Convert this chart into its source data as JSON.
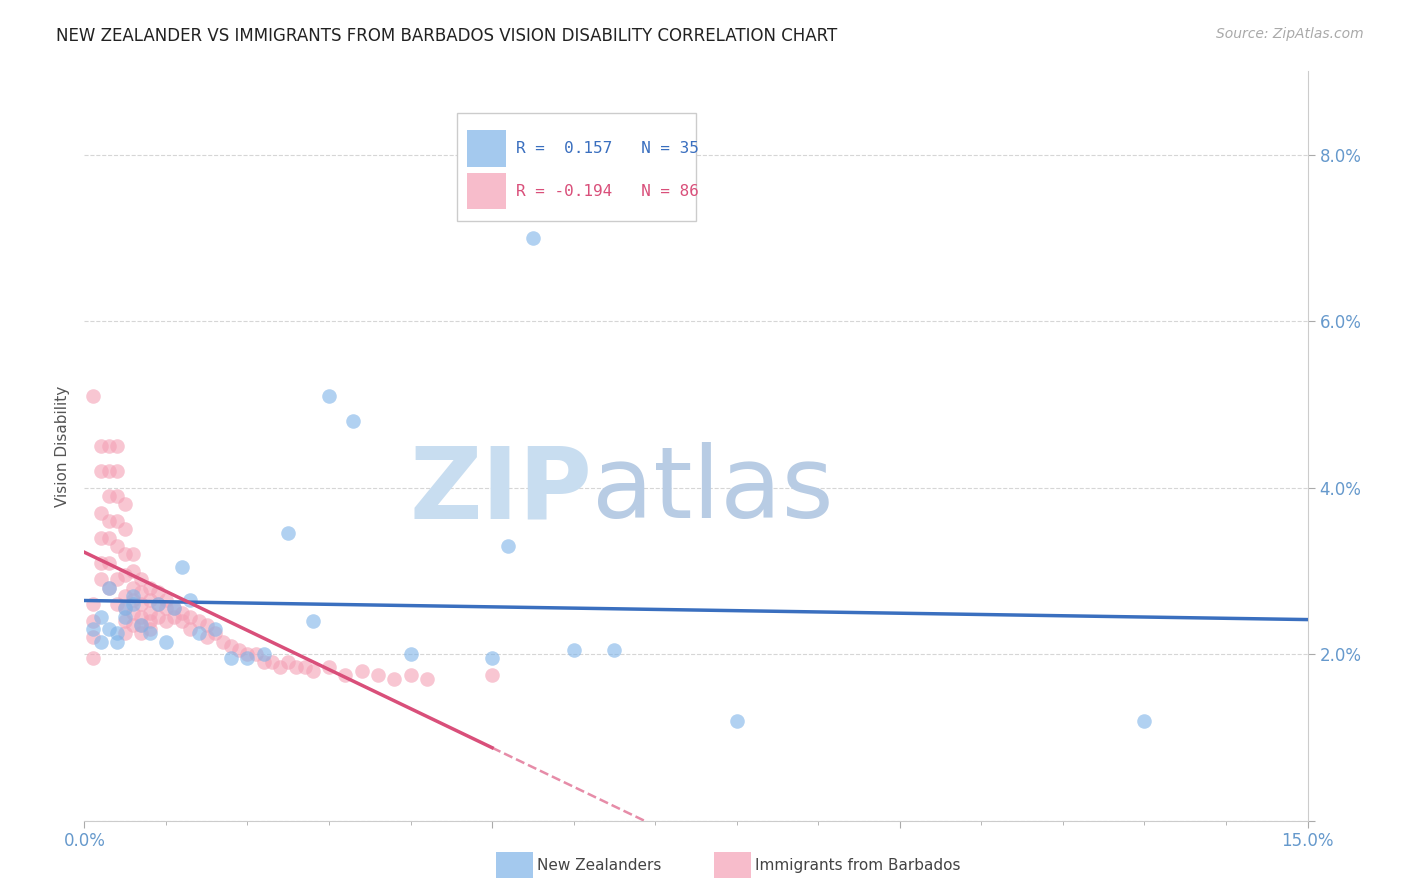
{
  "title": "NEW ZEALANDER VS IMMIGRANTS FROM BARBADOS VISION DISABILITY CORRELATION CHART",
  "source": "Source: ZipAtlas.com",
  "ylabel": "Vision Disability",
  "xlim": [
    0.0,
    0.15
  ],
  "ylim": [
    0.0,
    0.09
  ],
  "blue_color": "#7EB3E8",
  "pink_color": "#F4A0B5",
  "trendline_blue": "#3A6FBF",
  "trendline_pink": "#D94F7A",
  "legend_R_blue": "0.157",
  "legend_N_blue": "35",
  "legend_R_pink": "-0.194",
  "legend_N_pink": "86",
  "blue_points_x": [
    0.001,
    0.002,
    0.002,
    0.003,
    0.003,
    0.004,
    0.004,
    0.005,
    0.005,
    0.006,
    0.006,
    0.007,
    0.008,
    0.009,
    0.01,
    0.011,
    0.012,
    0.013,
    0.014,
    0.016,
    0.018,
    0.02,
    0.022,
    0.025,
    0.028,
    0.03,
    0.033,
    0.04,
    0.05,
    0.052,
    0.06,
    0.065,
    0.08,
    0.13,
    0.055
  ],
  "blue_points_y": [
    0.023,
    0.0245,
    0.0215,
    0.023,
    0.028,
    0.0225,
    0.0215,
    0.0245,
    0.0255,
    0.027,
    0.026,
    0.0235,
    0.0225,
    0.026,
    0.0215,
    0.0255,
    0.0305,
    0.0265,
    0.0225,
    0.023,
    0.0195,
    0.0195,
    0.02,
    0.0345,
    0.024,
    0.051,
    0.048,
    0.02,
    0.0195,
    0.033,
    0.0205,
    0.0205,
    0.012,
    0.012,
    0.07
  ],
  "pink_points_x": [
    0.001,
    0.001,
    0.001,
    0.001,
    0.001,
    0.002,
    0.002,
    0.002,
    0.002,
    0.002,
    0.002,
    0.003,
    0.003,
    0.003,
    0.003,
    0.003,
    0.003,
    0.003,
    0.004,
    0.004,
    0.004,
    0.004,
    0.004,
    0.004,
    0.004,
    0.005,
    0.005,
    0.005,
    0.005,
    0.005,
    0.005,
    0.005,
    0.005,
    0.006,
    0.006,
    0.006,
    0.006,
    0.006,
    0.006,
    0.007,
    0.007,
    0.007,
    0.007,
    0.007,
    0.007,
    0.008,
    0.008,
    0.008,
    0.008,
    0.008,
    0.009,
    0.009,
    0.009,
    0.01,
    0.01,
    0.01,
    0.011,
    0.011,
    0.012,
    0.012,
    0.013,
    0.013,
    0.014,
    0.015,
    0.015,
    0.016,
    0.017,
    0.018,
    0.019,
    0.02,
    0.021,
    0.022,
    0.023,
    0.024,
    0.025,
    0.026,
    0.027,
    0.028,
    0.03,
    0.032,
    0.034,
    0.036,
    0.038,
    0.04,
    0.042,
    0.05
  ],
  "pink_points_y": [
    0.051,
    0.026,
    0.024,
    0.022,
    0.0195,
    0.045,
    0.042,
    0.037,
    0.034,
    0.031,
    0.029,
    0.045,
    0.042,
    0.039,
    0.036,
    0.034,
    0.031,
    0.028,
    0.045,
    0.042,
    0.039,
    0.036,
    0.033,
    0.029,
    0.026,
    0.038,
    0.035,
    0.032,
    0.0295,
    0.027,
    0.0255,
    0.024,
    0.0225,
    0.032,
    0.03,
    0.028,
    0.0265,
    0.025,
    0.0235,
    0.029,
    0.0275,
    0.026,
    0.0245,
    0.0235,
    0.0225,
    0.028,
    0.0265,
    0.025,
    0.024,
    0.023,
    0.0275,
    0.026,
    0.0245,
    0.0265,
    0.0255,
    0.024,
    0.0255,
    0.0245,
    0.025,
    0.024,
    0.0245,
    0.023,
    0.024,
    0.0235,
    0.022,
    0.0225,
    0.0215,
    0.021,
    0.0205,
    0.02,
    0.02,
    0.019,
    0.019,
    0.0185,
    0.019,
    0.0185,
    0.0185,
    0.018,
    0.0185,
    0.0175,
    0.018,
    0.0175,
    0.017,
    0.0175,
    0.017,
    0.0175
  ],
  "watermark_zip": "ZIP",
  "watermark_atlas": "atlas",
  "watermark_color_zip": "#c8ddf0",
  "watermark_color_atlas": "#b8cce4",
  "background_color": "#ffffff",
  "grid_color": "#cccccc",
  "tick_color": "#6699cc",
  "title_color": "#222222",
  "ylabel_color": "#555555"
}
